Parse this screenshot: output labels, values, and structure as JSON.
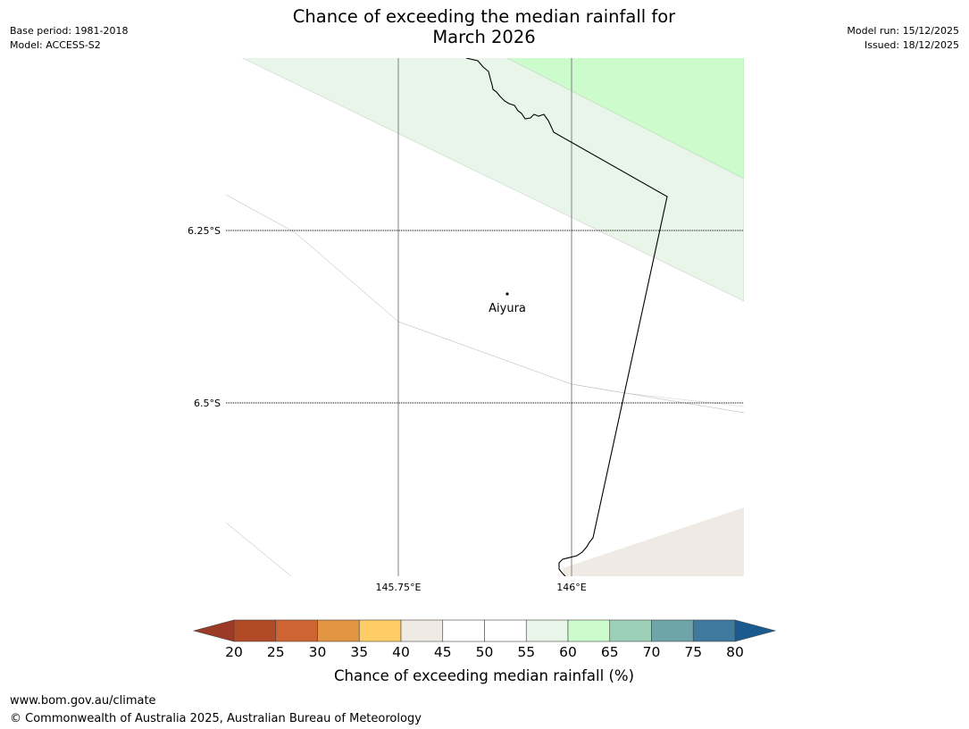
{
  "header": {
    "base_period": "Base period: 1981-2018",
    "model": "Model: ACCESS-S2",
    "model_run": "Model run: 15/12/2025",
    "issued": "Issued: 18/12/2025"
  },
  "title": {
    "line1": "Chance of exceeding the median rainfall for",
    "line2": "March 2026"
  },
  "map": {
    "lat_labels": [
      "6.25°S",
      "6.5°S"
    ],
    "lon_labels": [
      "145.75°E",
      "146°E"
    ],
    "place": {
      "name": "Aiyura"
    },
    "colors": {
      "land_background": "#ffffff",
      "band_55_60": "#e8f5e8",
      "band_60_65": "#ccfccc",
      "band_40_45": "#efebe4",
      "coastline": "#000000",
      "gridline": "#808080"
    }
  },
  "colorbar": {
    "title": "Chance of exceeding median rainfall (%)",
    "ticks": [
      "20",
      "25",
      "30",
      "35",
      "40",
      "45",
      "50",
      "55",
      "60",
      "65",
      "70",
      "75",
      "80"
    ],
    "under_color": "#9b3a26",
    "over_color": "#1a5a8f",
    "segments": [
      {
        "range": "20-25",
        "color": "#b14a27"
      },
      {
        "range": "25-30",
        "color": "#cd6432"
      },
      {
        "range": "30-35",
        "color": "#e29543"
      },
      {
        "range": "35-40",
        "color": "#ffcc66"
      },
      {
        "range": "40-45",
        "color": "#efebe4"
      },
      {
        "range": "45-50",
        "color": "#ffffff"
      },
      {
        "range": "50-55",
        "color": "#ffffff"
      },
      {
        "range": "55-60",
        "color": "#e8f5e8"
      },
      {
        "range": "60-65",
        "color": "#ccfccc"
      },
      {
        "range": "65-70",
        "color": "#9dd0b8"
      },
      {
        "range": "70-75",
        "color": "#6fa4a8"
      },
      {
        "range": "75-80",
        "color": "#3f7a9e"
      }
    ]
  },
  "footer": {
    "url": "www.bom.gov.au/climate",
    "copyright": "© Commonwealth of Australia 2025, Australian Bureau of Meteorology"
  }
}
